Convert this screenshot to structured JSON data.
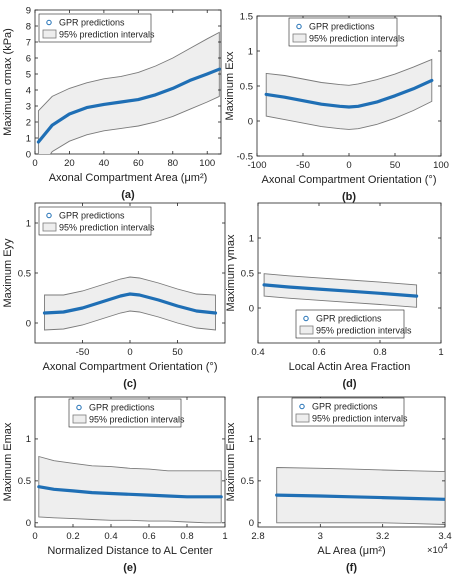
{
  "colors": {
    "line": "#1f6fb5",
    "band_fill": "#eeeeee",
    "band_edge": "#7a7a7a",
    "axis": "#222222"
  },
  "legend": {
    "predictions": "GPR predictions",
    "interval": "95% prediction intervals"
  },
  "chart_data": [
    {
      "type": "line",
      "caption": "(a)",
      "xlabel": "Axonal Compartment Area (μm²)",
      "ylabel": "Maximum σmax (kPa)",
      "xlim": [
        0,
        108
      ],
      "ylim": [
        0,
        9
      ],
      "xticks": [
        0,
        20,
        40,
        60,
        80,
        100
      ],
      "yticks": [
        0,
        1,
        2,
        3,
        4,
        5,
        6,
        7,
        8,
        9
      ],
      "legend_position": "top-left",
      "x": [
        2,
        10,
        20,
        30,
        40,
        50,
        60,
        70,
        80,
        90,
        100,
        107
      ],
      "y": [
        0.75,
        1.8,
        2.5,
        2.9,
        3.1,
        3.25,
        3.4,
        3.7,
        4.1,
        4.6,
        5.0,
        5.3
      ],
      "lower": [
        -1.1,
        0.15,
        0.8,
        1.2,
        1.45,
        1.6,
        1.75,
        2.0,
        2.35,
        2.8,
        3.25,
        3.6
      ],
      "upper": [
        2.7,
        3.6,
        4.1,
        4.45,
        4.7,
        4.85,
        5.1,
        5.5,
        6.0,
        6.6,
        7.2,
        7.6
      ]
    },
    {
      "type": "line",
      "caption": "(b)",
      "xlabel": "Axonal Compartment Orientation (°)",
      "ylabel": "Maximum Exx",
      "xlim": [
        -100,
        100
      ],
      "ylim": [
        -0.5,
        1.5
      ],
      "xticks": [
        -100,
        -50,
        0,
        50,
        100
      ],
      "yticks": [
        -0.5,
        0,
        0.5,
        1,
        1.5
      ],
      "legend_position": "top",
      "x": [
        -90,
        -70,
        -50,
        -30,
        -10,
        0,
        10,
        30,
        50,
        70,
        90
      ],
      "y": [
        0.38,
        0.34,
        0.29,
        0.24,
        0.21,
        0.2,
        0.21,
        0.27,
        0.36,
        0.46,
        0.58
      ],
      "lower": [
        0.07,
        0.02,
        -0.03,
        -0.08,
        -0.11,
        -0.12,
        -0.11,
        -0.05,
        0.04,
        0.15,
        0.28
      ],
      "upper": [
        0.68,
        0.65,
        0.6,
        0.55,
        0.52,
        0.51,
        0.53,
        0.59,
        0.67,
        0.77,
        0.88
      ]
    },
    {
      "type": "line",
      "caption": "(c)",
      "xlabel": "Axonal Compartment Orientation (°)",
      "ylabel": "Maximum Eyy",
      "xlim": [
        -100,
        100
      ],
      "ylim": [
        -0.2,
        1.2
      ],
      "xticks": [
        -50,
        0,
        50
      ],
      "yticks": [
        0,
        0.5,
        1
      ],
      "legend_position": "top-left",
      "x": [
        -90,
        -70,
        -50,
        -30,
        -10,
        0,
        10,
        30,
        50,
        70,
        90
      ],
      "y": [
        0.1,
        0.11,
        0.15,
        0.21,
        0.27,
        0.29,
        0.28,
        0.23,
        0.17,
        0.12,
        0.1
      ],
      "lower": [
        -0.07,
        -0.06,
        -0.02,
        0.04,
        0.1,
        0.12,
        0.11,
        0.06,
        0.0,
        -0.05,
        -0.07
      ],
      "upper": [
        0.28,
        0.28,
        0.32,
        0.38,
        0.44,
        0.46,
        0.45,
        0.4,
        0.34,
        0.29,
        0.28
      ]
    },
    {
      "type": "line",
      "caption": "(d)",
      "xlabel": "Local Actin Area Fraction",
      "ylabel": "Maximum γmax",
      "xlim": [
        0.4,
        1
      ],
      "ylim": [
        -0.5,
        1.5
      ],
      "xticks": [
        0.4,
        0.6,
        0.8,
        1
      ],
      "yticks": [
        0,
        0.5,
        1
      ],
      "legend_position": "bottom-left",
      "x": [
        0.42,
        0.5,
        0.6,
        0.7,
        0.8,
        0.92
      ],
      "y": [
        0.33,
        0.3,
        0.27,
        0.24,
        0.21,
        0.17
      ],
      "lower": [
        0.17,
        0.14,
        0.11,
        0.08,
        0.05,
        0.01
      ],
      "upper": [
        0.49,
        0.46,
        0.43,
        0.4,
        0.37,
        0.33
      ]
    },
    {
      "type": "line",
      "caption": "(e)",
      "xlabel": "Normalized Distance to AL Center",
      "ylabel": "Maximum Emax",
      "xlim": [
        0,
        1
      ],
      "ylim": [
        -0.05,
        1.5
      ],
      "xticks": [
        0,
        0.2,
        0.4,
        0.6,
        0.8,
        1
      ],
      "yticks": [
        0,
        0.5,
        1
      ],
      "legend_position": "top-left",
      "x": [
        0.02,
        0.1,
        0.2,
        0.3,
        0.4,
        0.5,
        0.6,
        0.7,
        0.8,
        0.9,
        0.98
      ],
      "y": [
        0.43,
        0.4,
        0.38,
        0.36,
        0.35,
        0.34,
        0.33,
        0.32,
        0.31,
        0.31,
        0.31
      ],
      "lower": [
        0.07,
        0.06,
        0.05,
        0.04,
        0.03,
        0.03,
        0.02,
        0.02,
        0.01,
        0.0,
        0.0
      ],
      "upper": [
        0.79,
        0.74,
        0.71,
        0.68,
        0.67,
        0.65,
        0.64,
        0.62,
        0.62,
        0.62,
        0.62
      ]
    },
    {
      "type": "line",
      "caption": "(f)",
      "xlabel": "AL Area (μm²)",
      "ylabel": "Maximum Emax",
      "xlim": [
        28000,
        34000
      ],
      "ylim": [
        -0.05,
        1.5
      ],
      "xticks": [
        28000,
        30000,
        32000,
        34000
      ],
      "xtick_labels": [
        "2.8",
        "3",
        "3.2",
        "3.4"
      ],
      "x_exponent": "×10",
      "x_exponent_power": "4",
      "yticks": [
        0,
        0.5,
        1
      ],
      "legend_position": "top-left",
      "x": [
        28600,
        30000,
        31000,
        32000,
        33000,
        34000
      ],
      "y": [
        0.33,
        0.32,
        0.31,
        0.3,
        0.29,
        0.28
      ],
      "lower": [
        0.0,
        0.0,
        0.0,
        0.0,
        -0.01,
        -0.02
      ],
      "upper": [
        0.66,
        0.65,
        0.64,
        0.63,
        0.62,
        0.61
      ]
    }
  ]
}
